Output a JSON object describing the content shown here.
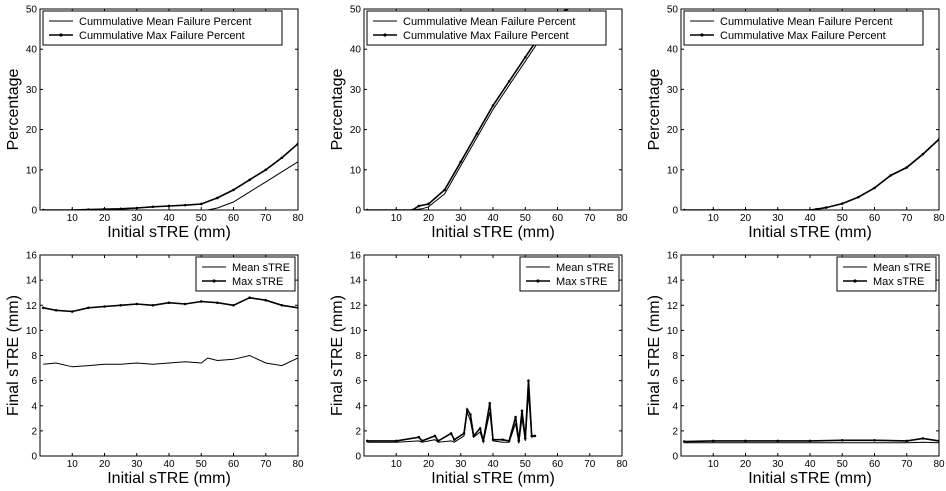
{
  "chart_data": [
    {
      "type": "line",
      "xlabel": "Initial sTRE (mm)",
      "ylabel": "Percentage",
      "xlim": [
        0,
        80
      ],
      "ylim": [
        0,
        50
      ],
      "xticks": [
        10,
        20,
        30,
        40,
        50,
        60,
        70,
        80
      ],
      "yticks": [
        0,
        10,
        20,
        30,
        40,
        50
      ],
      "legend_position": "top-left",
      "series": [
        {
          "name": "Cummulative Mean Failure Percent",
          "marker": "none",
          "x": [
            1,
            10,
            20,
            30,
            40,
            45,
            50,
            52,
            55,
            60,
            65,
            70,
            75,
            80
          ],
          "y": [
            0,
            0,
            0,
            0,
            0,
            0,
            0,
            0,
            0.5,
            2,
            4.5,
            7,
            9.5,
            12
          ]
        },
        {
          "name": "Cummulative Max Failure Percent",
          "marker": "dot",
          "x": [
            1,
            10,
            15,
            20,
            25,
            30,
            35,
            40,
            45,
            50,
            55,
            60,
            65,
            70,
            75,
            80
          ],
          "y": [
            0,
            0,
            0.1,
            0.2,
            0.3,
            0.5,
            0.8,
            1,
            1.2,
            1.5,
            3,
            5,
            7.5,
            10,
            13,
            16.5
          ]
        }
      ]
    },
    {
      "type": "line",
      "xlabel": "Initial sTRE (mm)",
      "ylabel": "Percentage",
      "xlim": [
        0,
        80
      ],
      "ylim": [
        0,
        50
      ],
      "xticks": [
        10,
        20,
        30,
        40,
        50,
        60,
        70,
        80
      ],
      "yticks": [
        0,
        10,
        20,
        30,
        40,
        50
      ],
      "legend_position": "top-left",
      "series": [
        {
          "name": "Cummulative Mean Failure Percent",
          "marker": "none",
          "x": [
            1,
            10,
            15,
            18,
            20,
            25,
            30,
            35,
            40,
            45,
            50,
            55,
            60,
            63
          ],
          "y": [
            0,
            0,
            0,
            0.3,
            0.8,
            4,
            11,
            18,
            25,
            31,
            37,
            43,
            48,
            50
          ]
        },
        {
          "name": "Cummulative Max Failure Percent",
          "marker": "dot",
          "x": [
            1,
            10,
            15,
            17,
            20,
            25,
            30,
            35,
            40,
            45,
            50,
            55,
            60,
            63
          ],
          "y": [
            0,
            0,
            0,
            1,
            1.5,
            5,
            12,
            19,
            26,
            32,
            38,
            44,
            48.5,
            50
          ]
        }
      ]
    },
    {
      "type": "line",
      "xlabel": "Initial sTRE (mm)",
      "ylabel": "Percentage",
      "xlim": [
        0,
        80
      ],
      "ylim": [
        0,
        50
      ],
      "xticks": [
        10,
        20,
        30,
        40,
        50,
        60,
        70,
        80
      ],
      "yticks": [
        0,
        10,
        20,
        30,
        40,
        50
      ],
      "legend_position": "top-left",
      "series": [
        {
          "name": "Cummulative Mean Failure Percent",
          "marker": "none",
          "x": [
            1,
            10,
            20,
            30,
            40,
            42,
            45,
            50,
            55,
            60,
            65,
            70,
            75,
            80
          ],
          "y": [
            0,
            0,
            0,
            0,
            0,
            0.2,
            0.6,
            1.6,
            3.2,
            5.5,
            8.5,
            10.5,
            13.8,
            17.5
          ]
        },
        {
          "name": "Cummulative Max Failure Percent",
          "marker": "dot",
          "x": [
            1,
            10,
            20,
            30,
            40,
            42,
            45,
            50,
            55,
            60,
            65,
            70,
            75,
            80
          ],
          "y": [
            0,
            0,
            0,
            0,
            0,
            0.2,
            0.6,
            1.6,
            3.2,
            5.5,
            8.6,
            10.6,
            13.9,
            17.6
          ]
        }
      ]
    },
    {
      "type": "line",
      "xlabel": "Initial sTRE (mm)",
      "ylabel": "Final sTRE (mm)",
      "xlim": [
        0,
        80
      ],
      "ylim": [
        0,
        16
      ],
      "xticks": [
        10,
        20,
        30,
        40,
        50,
        60,
        70,
        80
      ],
      "yticks": [
        0,
        2,
        4,
        6,
        8,
        10,
        12,
        14,
        16
      ],
      "legend_position": "top-right",
      "series": [
        {
          "name": "Mean sTRE",
          "marker": "none",
          "x": [
            1,
            5,
            10,
            15,
            20,
            25,
            30,
            35,
            40,
            45,
            50,
            52,
            55,
            60,
            65,
            70,
            75,
            80
          ],
          "y": [
            7.3,
            7.4,
            7.1,
            7.2,
            7.3,
            7.3,
            7.4,
            7.3,
            7.4,
            7.5,
            7.4,
            7.8,
            7.6,
            7.7,
            8.0,
            7.4,
            7.2,
            7.8
          ]
        },
        {
          "name": "Max sTRE",
          "marker": "dot",
          "x": [
            1,
            5,
            10,
            15,
            20,
            25,
            30,
            35,
            40,
            45,
            50,
            55,
            60,
            65,
            70,
            75,
            80
          ],
          "y": [
            11.8,
            11.6,
            11.5,
            11.8,
            11.9,
            12.0,
            12.1,
            12.0,
            12.2,
            12.1,
            12.3,
            12.2,
            12.0,
            12.6,
            12.4,
            12.0,
            11.8
          ]
        }
      ]
    },
    {
      "type": "line",
      "xlabel": "Initial sTRE (mm)",
      "ylabel": "Final sTRE (mm)",
      "xlim": [
        0,
        80
      ],
      "ylim": [
        0,
        16
      ],
      "xticks": [
        10,
        20,
        30,
        40,
        50,
        60,
        70,
        80
      ],
      "yticks": [
        0,
        2,
        4,
        6,
        8,
        10,
        12,
        14,
        16
      ],
      "legend_position": "top-right",
      "series": [
        {
          "name": "Mean sTRE",
          "marker": "none",
          "x": [
            1,
            10,
            17,
            18,
            22,
            23,
            27,
            28,
            31,
            32,
            33,
            34,
            36,
            37,
            39,
            40,
            43,
            45,
            47,
            48,
            49,
            50,
            51,
            52,
            53
          ],
          "y": [
            1.1,
            1.1,
            1.2,
            1.1,
            1.3,
            1.1,
            1.2,
            1.1,
            1.6,
            3.5,
            2.8,
            1.5,
            1.9,
            1.1,
            3.5,
            1.2,
            1.1,
            1.1,
            2.6,
            1.0,
            3.0,
            1.2,
            5.0,
            1.5,
            1.6
          ]
        },
        {
          "name": "Max sTRE",
          "marker": "dot",
          "x": [
            1,
            10,
            17,
            18,
            22,
            23,
            27,
            28,
            31,
            32,
            33,
            34,
            36,
            37,
            39,
            40,
            43,
            45,
            47,
            48,
            49,
            50,
            51,
            52,
            53
          ],
          "y": [
            1.2,
            1.2,
            1.5,
            1.2,
            1.6,
            1.2,
            1.8,
            1.3,
            1.8,
            3.7,
            3.3,
            1.6,
            2.2,
            1.2,
            4.2,
            1.3,
            1.3,
            1.2,
            3.1,
            1.2,
            3.6,
            1.4,
            6.0,
            1.6,
            1.6
          ]
        }
      ]
    },
    {
      "type": "line",
      "xlabel": "Initial sTRE (mm)",
      "ylabel": "Final sTRE (mm)",
      "xlim": [
        0,
        80
      ],
      "ylim": [
        0,
        16
      ],
      "xticks": [
        10,
        20,
        30,
        40,
        50,
        60,
        70,
        80
      ],
      "yticks": [
        0,
        2,
        4,
        6,
        8,
        10,
        12,
        14,
        16
      ],
      "legend_position": "top-right",
      "series": [
        {
          "name": "Mean sTRE",
          "marker": "none",
          "x": [
            1,
            10,
            20,
            30,
            40,
            50,
            60,
            70,
            75,
            80
          ],
          "y": [
            1.05,
            1.05,
            1.05,
            1.05,
            1.05,
            1.05,
            1.05,
            1.05,
            1.1,
            1.05
          ]
        },
        {
          "name": "Max sTRE",
          "marker": "dot",
          "x": [
            1,
            10,
            20,
            30,
            40,
            50,
            60,
            70,
            75,
            80
          ],
          "y": [
            1.15,
            1.2,
            1.2,
            1.2,
            1.2,
            1.25,
            1.25,
            1.2,
            1.4,
            1.2
          ]
        }
      ]
    }
  ]
}
